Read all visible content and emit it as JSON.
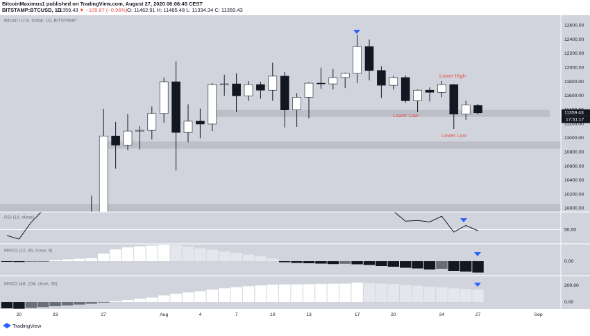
{
  "header": {
    "published": "BitcoinMaximus1 published on TradingView.com, August 27, 2020 08:08:45 CEST",
    "symbol": "BITSTAMP:BTCUSD, 1D",
    "last": "11359.43",
    "change": "▼ −109.87 (−0.96%)",
    "ohlc": "O: 11462.91  H: 11485.48  L: 11334.34  C: 11359.43"
  },
  "footer": {
    "brand": "TradingView"
  },
  "chart_data": [
    {
      "type": "candlestick",
      "title": "Bitcoin / U.S. Dollar, 1D, BITSTAMP",
      "categories": [
        null,
        "20",
        null,
        null,
        "23",
        null,
        null,
        null,
        "27",
        null,
        null,
        null,
        null,
        "Aug",
        null,
        null,
        "4",
        null,
        null,
        "7",
        null,
        null,
        "10",
        null,
        null,
        "13",
        null,
        null,
        null,
        "17",
        null,
        null,
        "20",
        null,
        null,
        null,
        "24",
        null,
        null,
        "27",
        null,
        null,
        null,
        null,
        "Sep"
      ],
      "open": [
        null,
        null,
        null,
        null,
        null,
        null,
        null,
        9550,
        9930,
        11030,
        10900,
        11100,
        11110,
        11350,
        11800,
        11080,
        11240,
        11200,
        11760,
        11770,
        11600,
        11760,
        11680,
        11880,
        11400,
        11580,
        11780,
        11770,
        11860,
        11920,
        12300,
        11960,
        11750,
        11860,
        11530,
        11680,
        11650,
        11760,
        11340,
        11462.91,
        null,
        null,
        null,
        null,
        null
      ],
      "high": [
        null,
        null,
        null,
        null,
        null,
        null,
        null,
        10180,
        11415,
        11230,
        11340,
        11170,
        11450,
        11860,
        12090,
        11480,
        11420,
        11780,
        11900,
        11920,
        11810,
        11800,
        12070,
        11940,
        11640,
        11790,
        12000,
        11980,
        11930,
        12470,
        12400,
        12020,
        11880,
        11890,
        11690,
        11720,
        11810,
        11770,
        11530,
        11485.48,
        null,
        null,
        null,
        null,
        null
      ],
      "low": [
        null,
        null,
        null,
        null,
        null,
        null,
        null,
        9300,
        9880,
        10565,
        10830,
        10840,
        10980,
        11220,
        10540,
        10940,
        11000,
        11100,
        11600,
        11370,
        11530,
        11560,
        11530,
        11150,
        11160,
        11280,
        11700,
        11690,
        11710,
        11780,
        11820,
        11570,
        11690,
        11500,
        11370,
        11520,
        11580,
        11130,
        11260,
        11334.34,
        null,
        null,
        null,
        null,
        null
      ],
      "close": [
        null,
        null,
        null,
        null,
        null,
        null,
        null,
        9930,
        11030,
        10900,
        11100,
        11110,
        11350,
        11800,
        11080,
        11240,
        11200,
        11760,
        11770,
        11600,
        11760,
        11680,
        11880,
        11400,
        11580,
        11780,
        11770,
        11860,
        11920,
        12300,
        11960,
        11750,
        11860,
        11530,
        11680,
        11650,
        11760,
        11340,
        11470,
        11359.43,
        null,
        null,
        null,
        null,
        null
      ],
      "up_color": "#ffffff",
      "down_color": "#131722",
      "countdown": "17:51:17",
      "zones": [
        [
          11300,
          11400
        ],
        [
          10850,
          10950
        ],
        [
          9950,
          10060
        ]
      ],
      "zone_color": "#bcbec8",
      "annotations": [
        "Lower High",
        "Lower Low",
        "Lower Low"
      ],
      "ylim": [
        9950,
        12745
      ],
      "yticks": [
        {
          "value": 10000,
          "label": "10000.00"
        },
        {
          "value": 10200,
          "label": "10200.00"
        },
        {
          "value": 10400,
          "label": "10400.00"
        },
        {
          "value": 10600,
          "label": "10600.00"
        },
        {
          "value": 10800,
          "label": "10800.00"
        },
        {
          "value": 11000,
          "label": "11000.00"
        },
        {
          "value": 11200,
          "label": "11200.00"
        },
        {
          "value": 11400,
          "label": "11400.00"
        },
        {
          "value": 11600,
          "label": "11600.00"
        },
        {
          "value": 11800,
          "label": "11800.00"
        },
        {
          "value": 12000,
          "label": "12000.00"
        },
        {
          "value": 12200,
          "label": "12200.00"
        },
        {
          "value": 12400,
          "label": "12400.00"
        },
        {
          "value": 12600,
          "label": "12600.00"
        }
      ],
      "grid": false
    },
    {
      "type": "line",
      "title": "RSI (14, close)",
      "values": [
        41.7,
        36.8,
        60.3,
        78,
        null,
        null,
        null,
        null,
        null,
        null,
        null,
        null,
        null,
        null,
        null,
        null,
        null,
        null,
        null,
        null,
        null,
        null,
        null,
        null,
        null,
        null,
        null,
        null,
        null,
        null,
        null,
        null,
        76,
        62,
        63,
        61,
        69,
        46.6,
        56,
        48.6,
        null,
        null,
        null,
        null,
        null
      ],
      "color": "#131722",
      "ylim": [
        30,
        75
      ],
      "yticks": [
        {
          "value": 50,
          "label": "50.00"
        }
      ],
      "grid": true
    },
    {
      "type": "histogram",
      "title": "MACD (12, 26, close, 9)",
      "values": [
        -10,
        -12,
        -8,
        -5,
        15,
        25,
        35,
        45,
        110,
        170,
        200,
        215,
        225,
        235,
        232,
        210,
        185,
        165,
        140,
        120,
        95,
        70,
        40,
        -15,
        -25,
        -30,
        -35,
        -42,
        -38,
        -45,
        -55,
        -70,
        -80,
        -95,
        -105,
        -120,
        -110,
        -140,
        -150,
        -165,
        null,
        null,
        null,
        null,
        null
      ],
      "colors": {
        "up_rising": "#ffffff",
        "up_falling": "#e6e7ec",
        "down_falling": "#131722",
        "down_rising": "#6a6d78"
      },
      "ylim": [
        -210,
        250
      ],
      "yticks": [
        {
          "value": 0,
          "label": "0.00"
        }
      ],
      "grid": false
    },
    {
      "type": "histogram",
      "title": "MACD (48, 104, close, 36)",
      "values": [
        -75,
        -80,
        -70,
        -60,
        -50,
        -40,
        -30,
        -20,
        -5,
        10,
        25,
        40,
        55,
        80,
        100,
        115,
        130,
        150,
        165,
        180,
        190,
        200,
        210,
        212,
        213,
        215,
        218,
        220,
        222,
        235,
        230,
        222,
        215,
        205,
        195,
        185,
        178,
        165,
        158,
        150,
        null,
        null,
        null,
        null,
        null
      ],
      "colors": {
        "up_rising": "#ffffff",
        "up_falling": "#e6e7ec",
        "down_falling": "#131722",
        "down_rising": "#6a6d78"
      },
      "ylim": [
        -83,
        317
      ],
      "yticks": [
        {
          "value": 200,
          "label": "200.00"
        },
        {
          "value": 0,
          "label": "0.00"
        }
      ],
      "grid": false
    }
  ]
}
